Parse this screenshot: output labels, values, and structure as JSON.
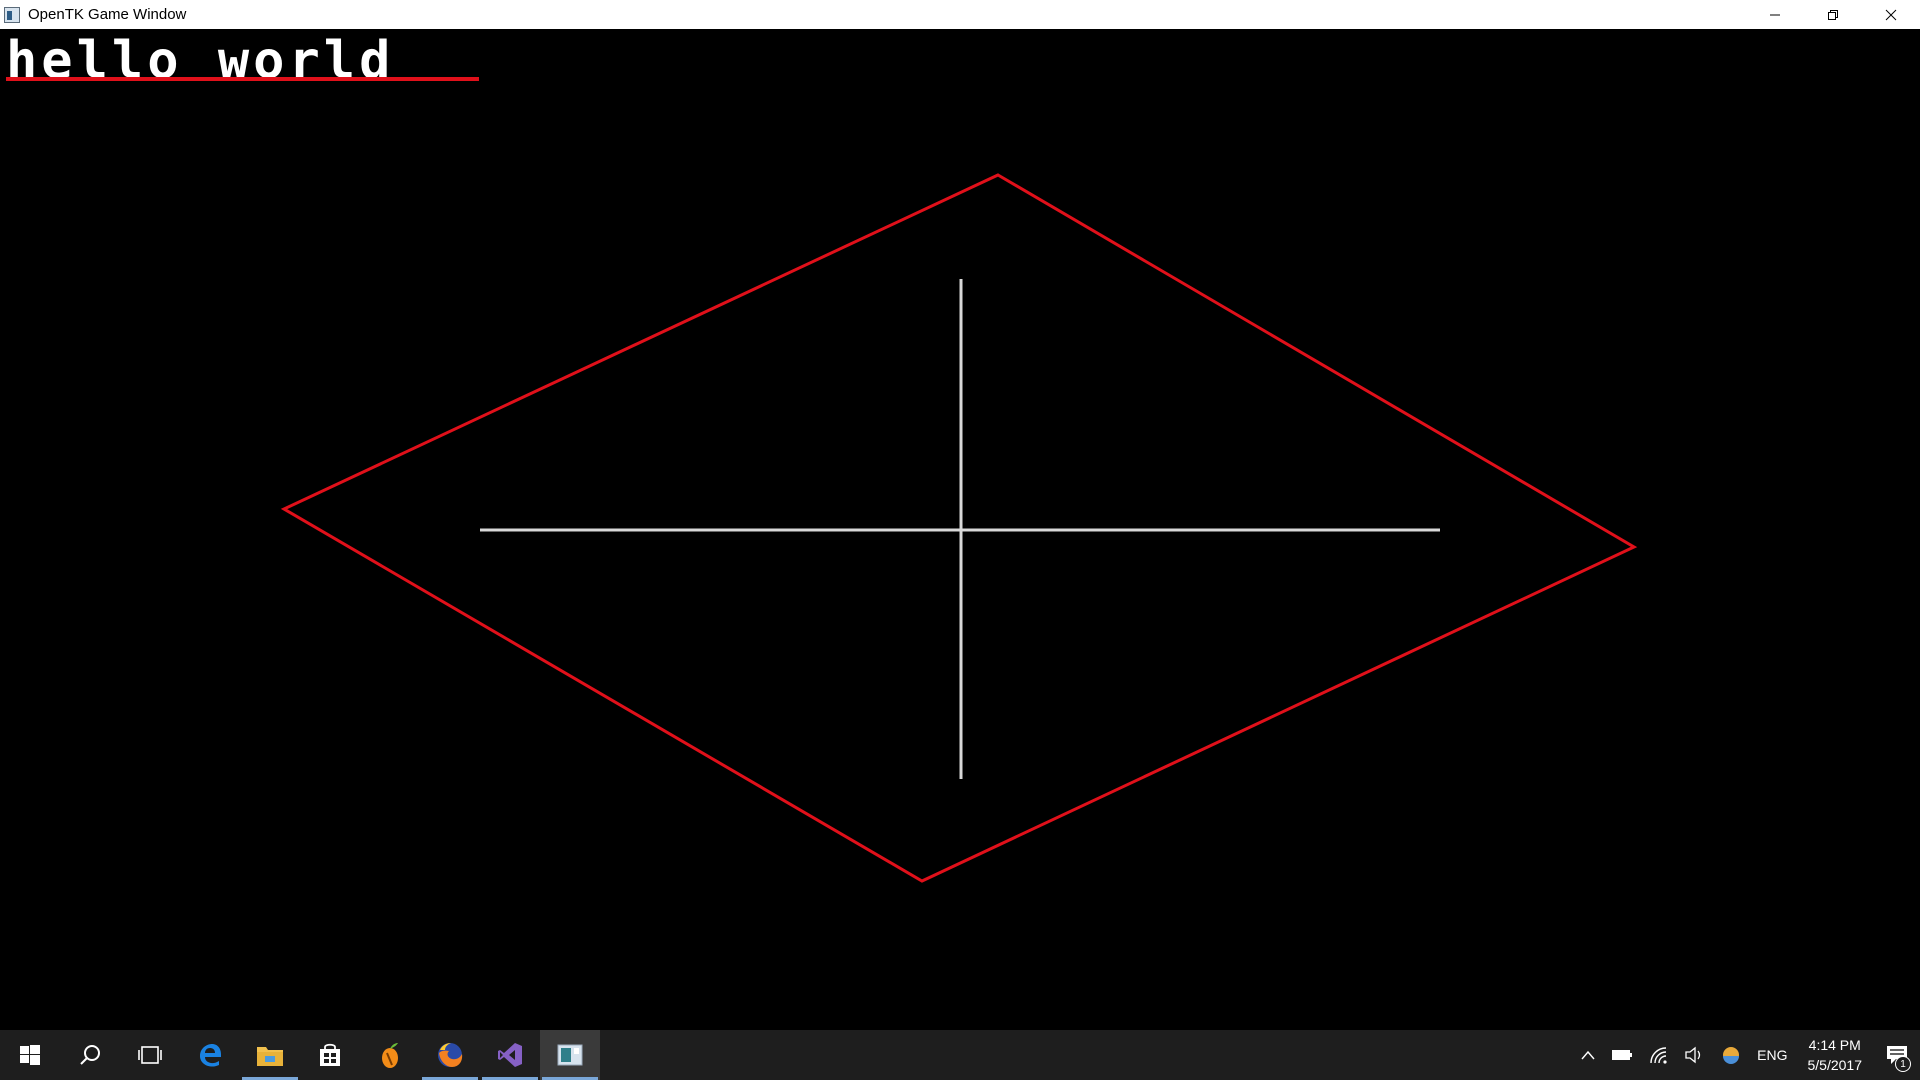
{
  "window": {
    "title": "OpenTK Game Window",
    "controls": [
      "minimize",
      "maximize",
      "close"
    ]
  },
  "game": {
    "text": "hello world",
    "colors": {
      "background": "#000000",
      "text": "#ffffff",
      "underline": "#e0101a",
      "diamond": "#e0101a",
      "cross": "#d8d8d8"
    }
  },
  "taskbar": {
    "apps": [
      {
        "icon": "windows-start-icon"
      },
      {
        "icon": "search-icon"
      },
      {
        "icon": "task-view-icon"
      },
      {
        "icon": "edge-icon"
      },
      {
        "icon": "file-explorer-icon"
      },
      {
        "icon": "store-icon"
      },
      {
        "icon": "fl-studio-icon"
      },
      {
        "icon": "firefox-icon"
      },
      {
        "icon": "visual-studio-icon"
      },
      {
        "icon": "opentk-app-icon"
      }
    ],
    "tray": {
      "language": "ENG",
      "time": "4:14 PM",
      "date": "5/5/2017",
      "notification_count": "1"
    }
  }
}
